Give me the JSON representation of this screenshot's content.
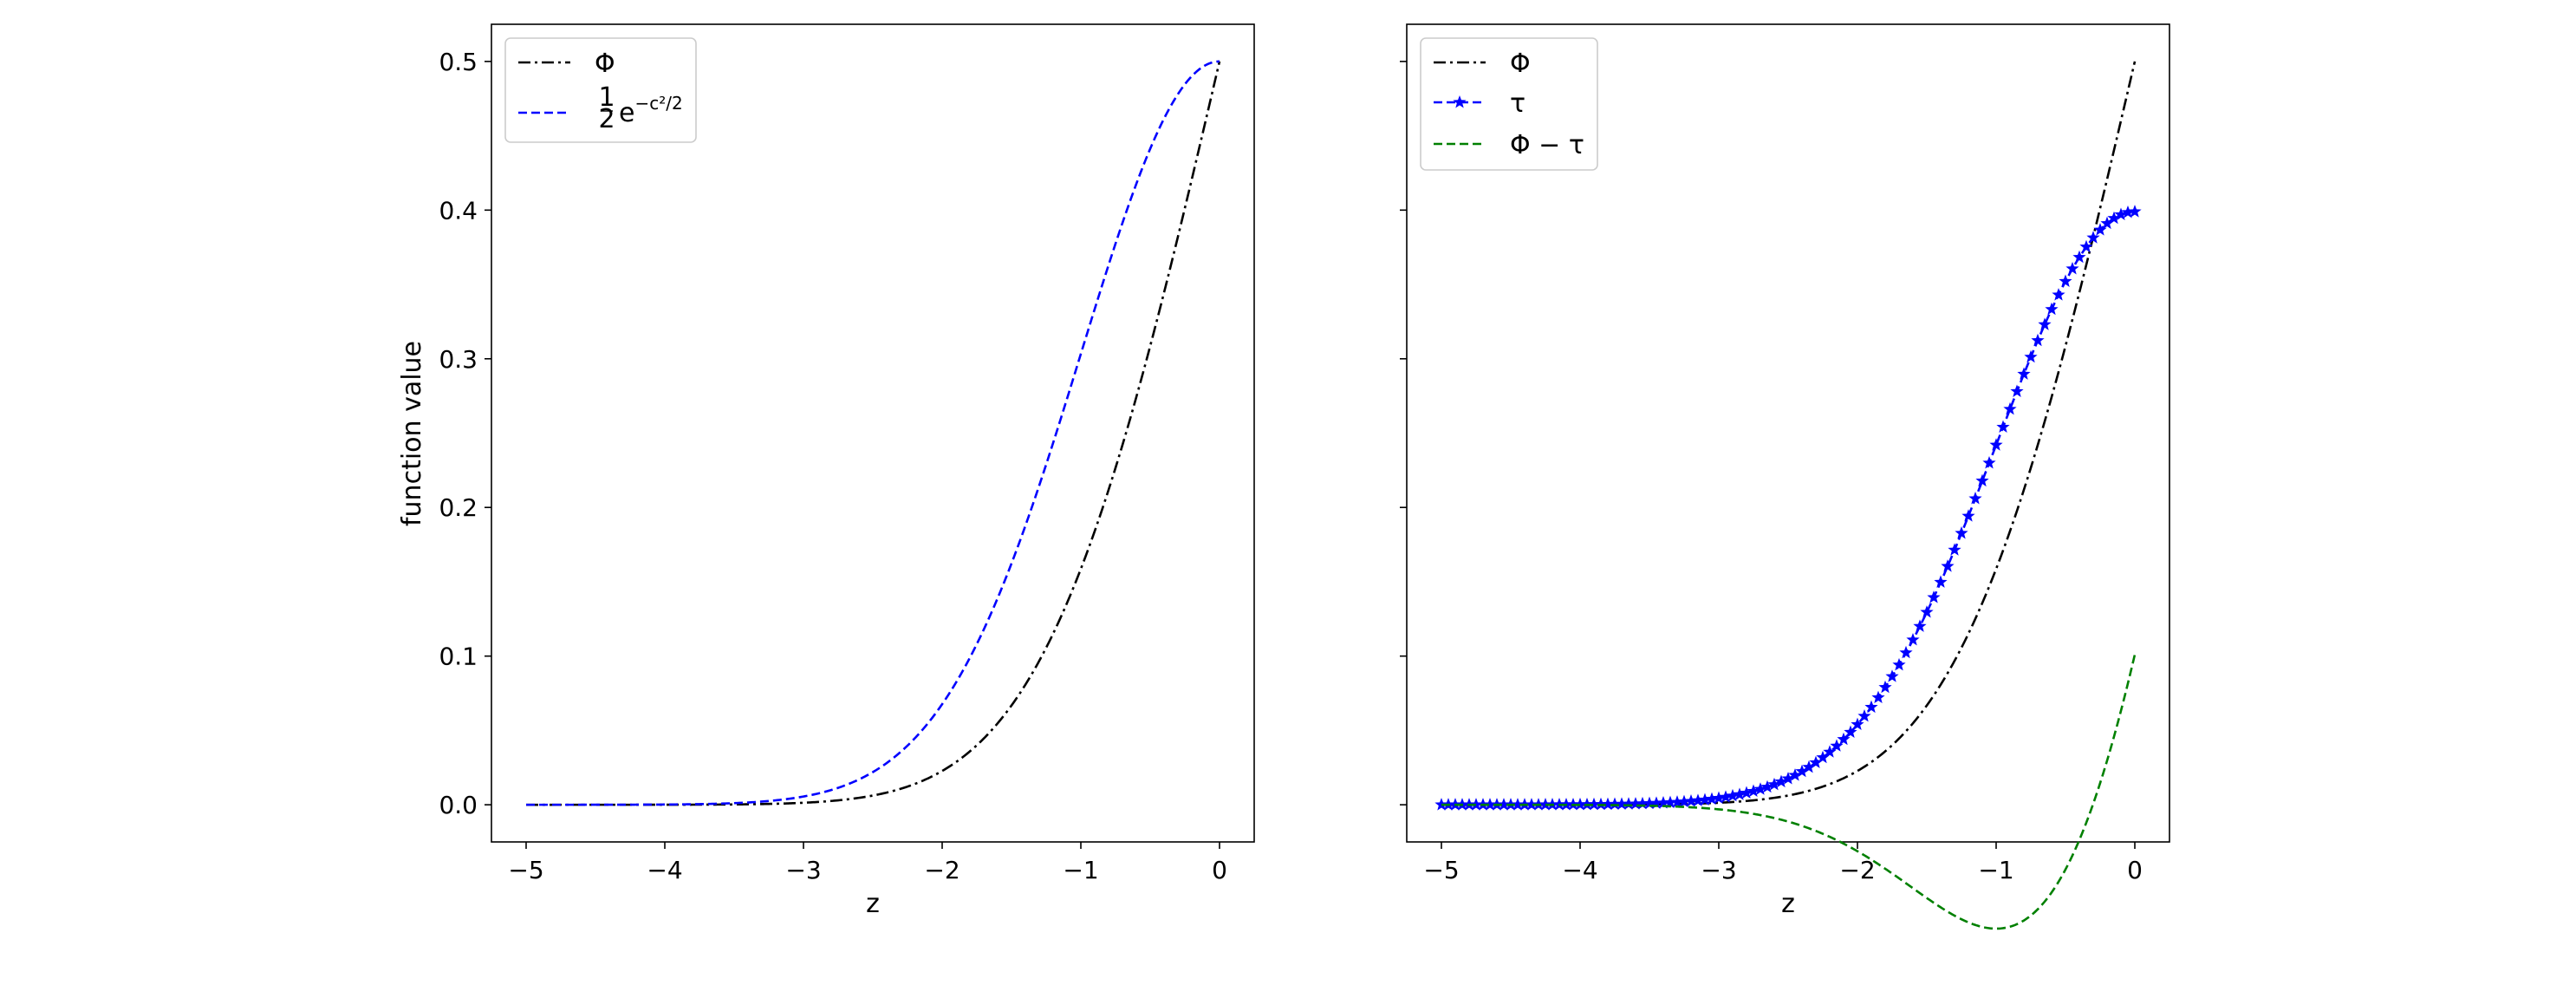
{
  "chart_data": [
    {
      "type": "line",
      "panel": "left",
      "xlabel": "z",
      "ylabel": "function value",
      "xlim": [
        -5.25,
        0.25
      ],
      "ylim": [
        -0.025,
        0.525
      ],
      "xticks": [
        -5,
        -4,
        -3,
        -2,
        -1,
        0
      ],
      "xtick_labels": [
        "−5",
        "−4",
        "−3",
        "−2",
        "−1",
        "0"
      ],
      "yticks": [
        0.0,
        0.1,
        0.2,
        0.3,
        0.4,
        0.5
      ],
      "ytick_labels": [
        "0.0",
        "0.1",
        "0.2",
        "0.3",
        "0.4",
        "0.5"
      ],
      "legend_position": "top-left",
      "series": [
        {
          "name": "Φ",
          "function": "normal_cdf",
          "color": "#000000",
          "style": "dashdot"
        },
        {
          "name": "½e^{−c²/2}",
          "legend_label": "½e",
          "legend_sup": "−c²/2",
          "function": "half_exp",
          "color": "#0000ff",
          "style": "dashed"
        }
      ]
    },
    {
      "type": "line",
      "panel": "right",
      "xlabel": "z",
      "ylabel": "",
      "xlim": [
        -5.25,
        0.25
      ],
      "ylim": [
        -0.025,
        0.525
      ],
      "xticks": [
        -5,
        -4,
        -3,
        -2,
        -1,
        0
      ],
      "xtick_labels": [
        "−5",
        "−4",
        "−3",
        "−2",
        "−1",
        "0"
      ],
      "yticks": [
        0.0,
        0.1,
        0.2,
        0.3,
        0.4,
        0.5
      ],
      "legend_position": "top-left",
      "series": [
        {
          "name": "Φ",
          "function": "normal_cdf",
          "color": "#000000",
          "style": "dashdot"
        },
        {
          "name": "τ",
          "function": "normal_pdf",
          "color": "#0000ff",
          "style": "dashed-star"
        },
        {
          "name": "Φ − τ",
          "function": "cdf_minus_pdf",
          "color": "#008000",
          "style": "dashed"
        }
      ]
    }
  ]
}
